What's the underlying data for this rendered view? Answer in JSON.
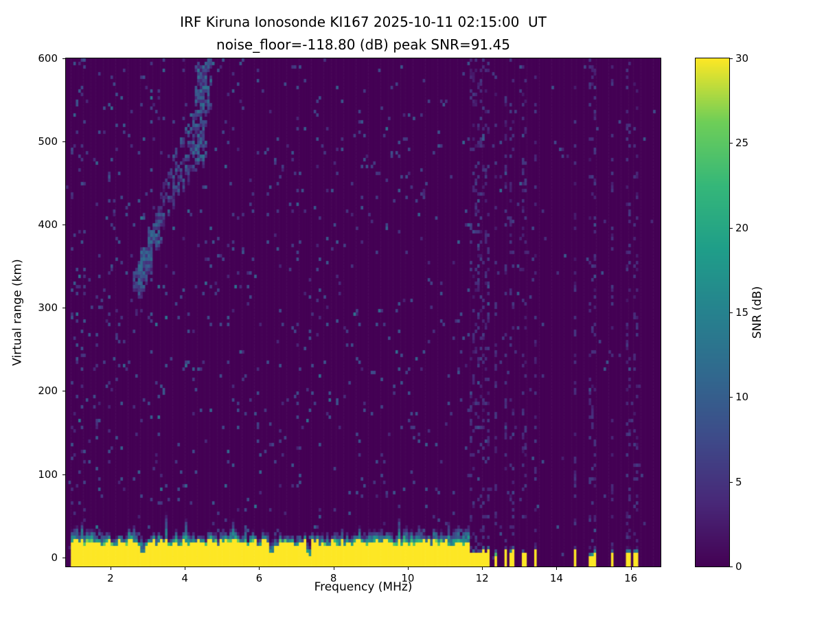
{
  "chart_data": {
    "type": "heatmap",
    "title": "IRF Kiruna Ionosonde KI167 2025-10-11 02:15:00  UT",
    "subtitle": "noise_floor=-118.80 (dB) peak SNR=91.45",
    "xlabel": "Frequency (MHz)",
    "ylabel": "Virtual range (km)",
    "xlim": [
      0.8,
      16.8
    ],
    "ylim": [
      -11,
      600
    ],
    "xticks": [
      2,
      4,
      6,
      8,
      10,
      12,
      14,
      16
    ],
    "yticks": [
      0,
      100,
      200,
      300,
      400,
      500,
      600
    ],
    "grid": false,
    "legend": "none",
    "colorbar": {
      "label": "SNR (dB)",
      "min": 0,
      "max": 30,
      "ticks": [
        0,
        5,
        10,
        15,
        20,
        25,
        30
      ],
      "colormap": "viridis",
      "position": "right"
    },
    "colormap_stops": [
      {
        "t": 0.0,
        "color": "#440154"
      },
      {
        "t": 0.125,
        "color": "#482878"
      },
      {
        "t": 0.25,
        "color": "#3e4a89"
      },
      {
        "t": 0.375,
        "color": "#31688e"
      },
      {
        "t": 0.5,
        "color": "#26828e"
      },
      {
        "t": 0.625,
        "color": "#1f9e89"
      },
      {
        "t": 0.75,
        "color": "#35b779"
      },
      {
        "t": 0.875,
        "color": "#6ece58"
      },
      {
        "t": 1.0,
        "color": "#fde725"
      }
    ],
    "features": {
      "seed": 167,
      "noise_floor_db": -118.8,
      "peak_snr_db": 91.45,
      "background_value_db": 0,
      "background_speckle": {
        "probability": 0.032,
        "snr_db_range": [
          3,
          9
        ]
      },
      "ground_echo_band": {
        "freq_range_mhz": [
          0.95,
          11.68
        ],
        "saturated_value_db": 30,
        "saturated_top_km": [
          13,
          22
        ],
        "fringe_km": [
          5,
          17
        ],
        "notches_mhz": [
          2.88,
          6.32,
          7.34
        ]
      },
      "intermittent_echoes": {
        "freq_range_mhz": [
          11.68,
          16.45
        ],
        "cluster_range_mhz": [
          11.68,
          13.25
        ],
        "spike_freqs_mhz": [
          13.45,
          14.05,
          14.5,
          14.95,
          15.5,
          15.95,
          16.15
        ],
        "top_km": [
          2,
          10
        ]
      },
      "ionospheric_trace": {
        "curve_f_km": [
          [
            2.7,
            332
          ],
          [
            3.0,
            362
          ],
          [
            3.3,
            400
          ],
          [
            3.6,
            445
          ],
          [
            3.9,
            472
          ],
          [
            4.15,
            492
          ],
          [
            4.4,
            525
          ],
          [
            4.6,
            562
          ],
          [
            4.75,
            585
          ]
        ],
        "snr_db_range": [
          4,
          12
        ]
      }
    }
  }
}
